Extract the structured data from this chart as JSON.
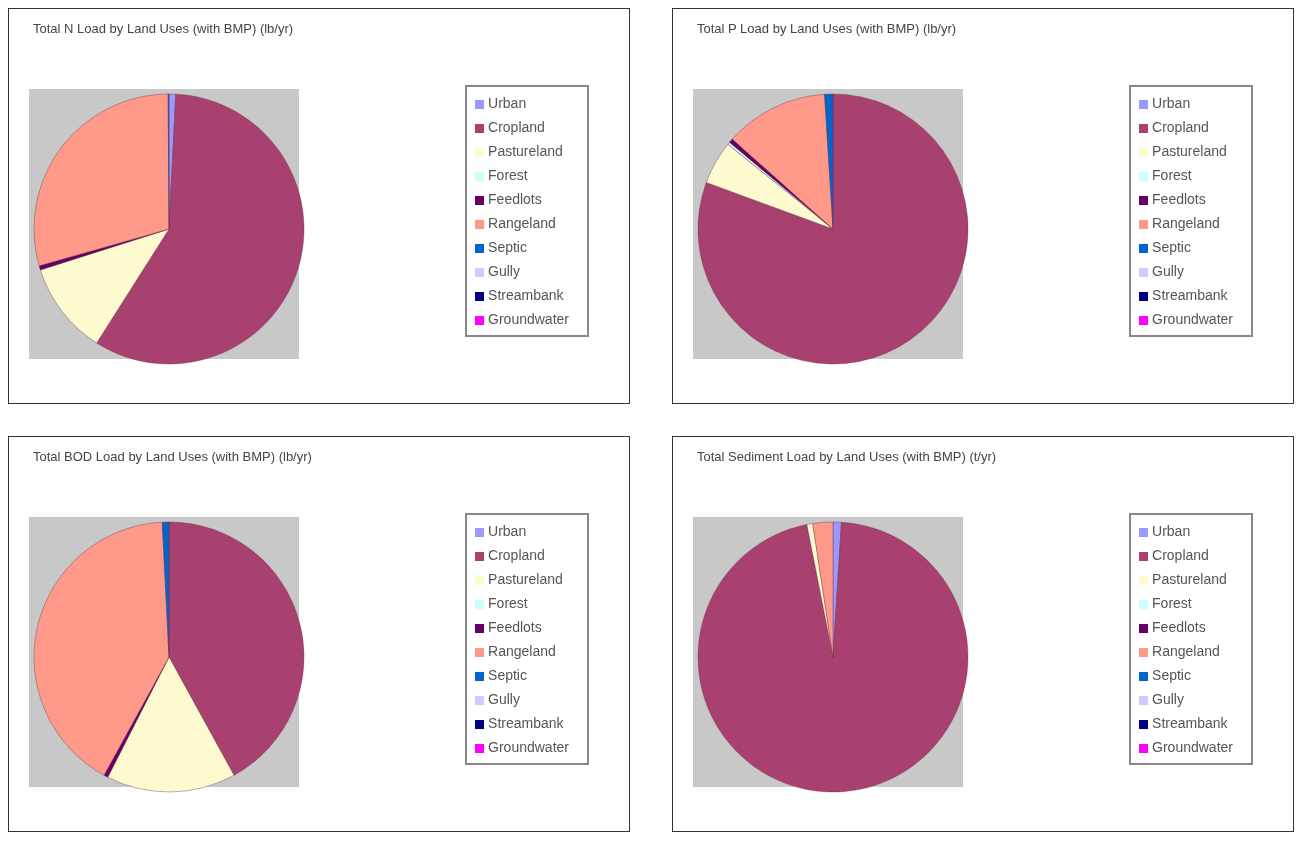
{
  "chart_data": [
    {
      "type": "pie",
      "title": "Total N Load by Land Uses (with BMP) (lb/yr)",
      "categories": [
        "Urban",
        "Cropland",
        "Pastureland",
        "Forest",
        "Feedlots",
        "Rangeland",
        "Septic",
        "Gully",
        "Streambank",
        "Groundwater"
      ],
      "values": [
        0.8,
        58.2,
        11.1,
        0,
        0.5,
        29.3,
        0.1,
        0,
        0,
        0
      ],
      "colors": [
        "#9999ff",
        "#a8416f",
        "#fdfad0",
        "#ccffff",
        "#660066",
        "#ff9a8a",
        "#0066cc",
        "#ccccff",
        "#000080",
        "#ff00ff"
      ],
      "legend": "right"
    },
    {
      "type": "pie",
      "title": "Total P Load by Land Uses (with BMP) (lb/yr)",
      "categories": [
        "Urban",
        "Cropland",
        "Pastureland",
        "Forest",
        "Feedlots",
        "Rangeland",
        "Septic",
        "Gully",
        "Streambank",
        "Groundwater"
      ],
      "values": [
        0,
        80.6,
        5.2,
        0.3,
        0.5,
        12.4,
        1.0,
        0,
        0,
        0
      ],
      "colors": [
        "#9999ff",
        "#a8416f",
        "#fdfad0",
        "#ccffff",
        "#660066",
        "#ff9a8a",
        "#0066cc",
        "#ccccff",
        "#000080",
        "#ff00ff"
      ],
      "legend": "right"
    },
    {
      "type": "pie",
      "title": "Total BOD Load by Land Uses (with BMP) (lb/yr)",
      "categories": [
        "Urban",
        "Cropland",
        "Pastureland",
        "Forest",
        "Feedlots",
        "Rangeland",
        "Septic",
        "Gully",
        "Streambank",
        "Groundwater"
      ],
      "values": [
        0,
        42.0,
        15.5,
        0,
        0.5,
        41.2,
        0.8,
        0,
        0,
        0
      ],
      "colors": [
        "#9999ff",
        "#a8416f",
        "#fdfad0",
        "#ccffff",
        "#660066",
        "#ff9a8a",
        "#0066cc",
        "#ccccff",
        "#000080",
        "#ff00ff"
      ],
      "legend": "right"
    },
    {
      "type": "pie",
      "title": "Total Sediment Load by Land Uses (with BMP) (t/yr)",
      "categories": [
        "Urban",
        "Cropland",
        "Pastureland",
        "Forest",
        "Feedlots",
        "Rangeland",
        "Septic",
        "Gully",
        "Streambank",
        "Groundwater"
      ],
      "values": [
        1.0,
        95.9,
        0.7,
        0,
        0,
        2.4,
        0,
        0,
        0,
        0
      ],
      "colors": [
        "#9999ff",
        "#a8416f",
        "#fdfad0",
        "#ccffff",
        "#660066",
        "#ff9a8a",
        "#0066cc",
        "#ccccff",
        "#000080",
        "#ff00ff"
      ],
      "legend": "right"
    }
  ]
}
